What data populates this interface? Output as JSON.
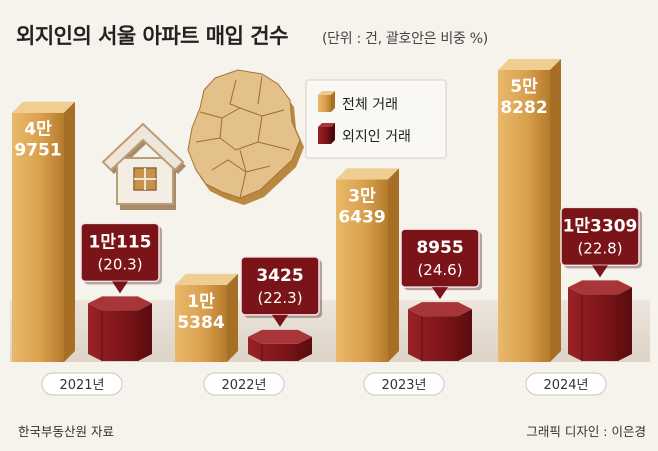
{
  "title": "외지인의 서울 아파트 매입 건수",
  "unit_note": "(단위 : 건, 괄호안은 비중 %)",
  "source": "한국부동산원 자료",
  "credit": "그래픽 디자인 : 이은경",
  "colors": {
    "total": "#d9a04e",
    "outsider": "#7a1418",
    "background": "#f6f2ec",
    "floor": "#e6ded4"
  },
  "chart_data": {
    "type": "bar",
    "categories": [
      "2021년",
      "2022년",
      "2023년",
      "2024년"
    ],
    "series": [
      {
        "name": "전체 거래",
        "values": [
          49751,
          15384,
          36439,
          58282
        ],
        "labels": [
          [
            "4만",
            "9751"
          ],
          [
            "1만",
            "5384"
          ],
          [
            "3만",
            "6439"
          ],
          [
            "5만",
            "8282"
          ]
        ]
      },
      {
        "name": "외지인 거래",
        "values": [
          10115,
          3425,
          8955,
          13309
        ],
        "shares": [
          20.3,
          22.3,
          24.6,
          22.8
        ],
        "labels": [
          [
            "1만115",
            "(20.3)"
          ],
          [
            "3425",
            "(22.3)"
          ],
          [
            "8955",
            "(24.6)"
          ],
          [
            "1만3309",
            "(22.8)"
          ]
        ]
      }
    ],
    "legend_position": "top-center"
  }
}
